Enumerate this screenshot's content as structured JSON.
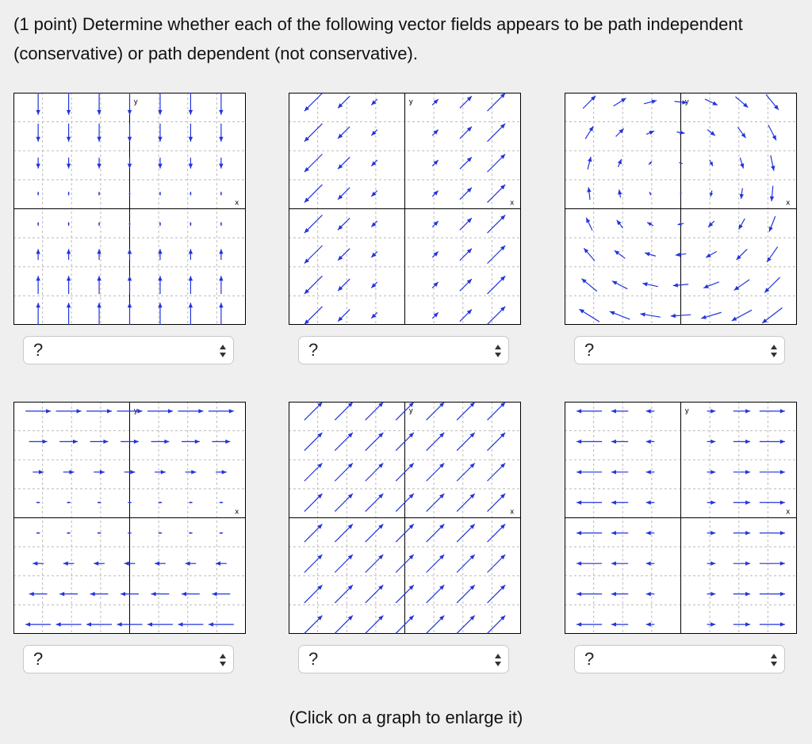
{
  "question": "(1 point) Determine whether each of the following vector fields appears to be path independent (conservative) or path dependent (not conservative).",
  "graphs": [
    {
      "y_label": "y",
      "x_label": "x",
      "select": "?"
    },
    {
      "y_label": "y",
      "x_label": "x",
      "select": "?"
    },
    {
      "y_label": "y",
      "x_label": "x",
      "select": "?"
    },
    {
      "y_label": "y",
      "x_label": "x",
      "select": "?"
    },
    {
      "y_label": "y",
      "x_label": "x",
      "select": "?"
    },
    {
      "y_label": "y",
      "x_label": "x",
      "select": "?"
    }
  ],
  "footer": "(Click on a graph to enlarge it)"
}
